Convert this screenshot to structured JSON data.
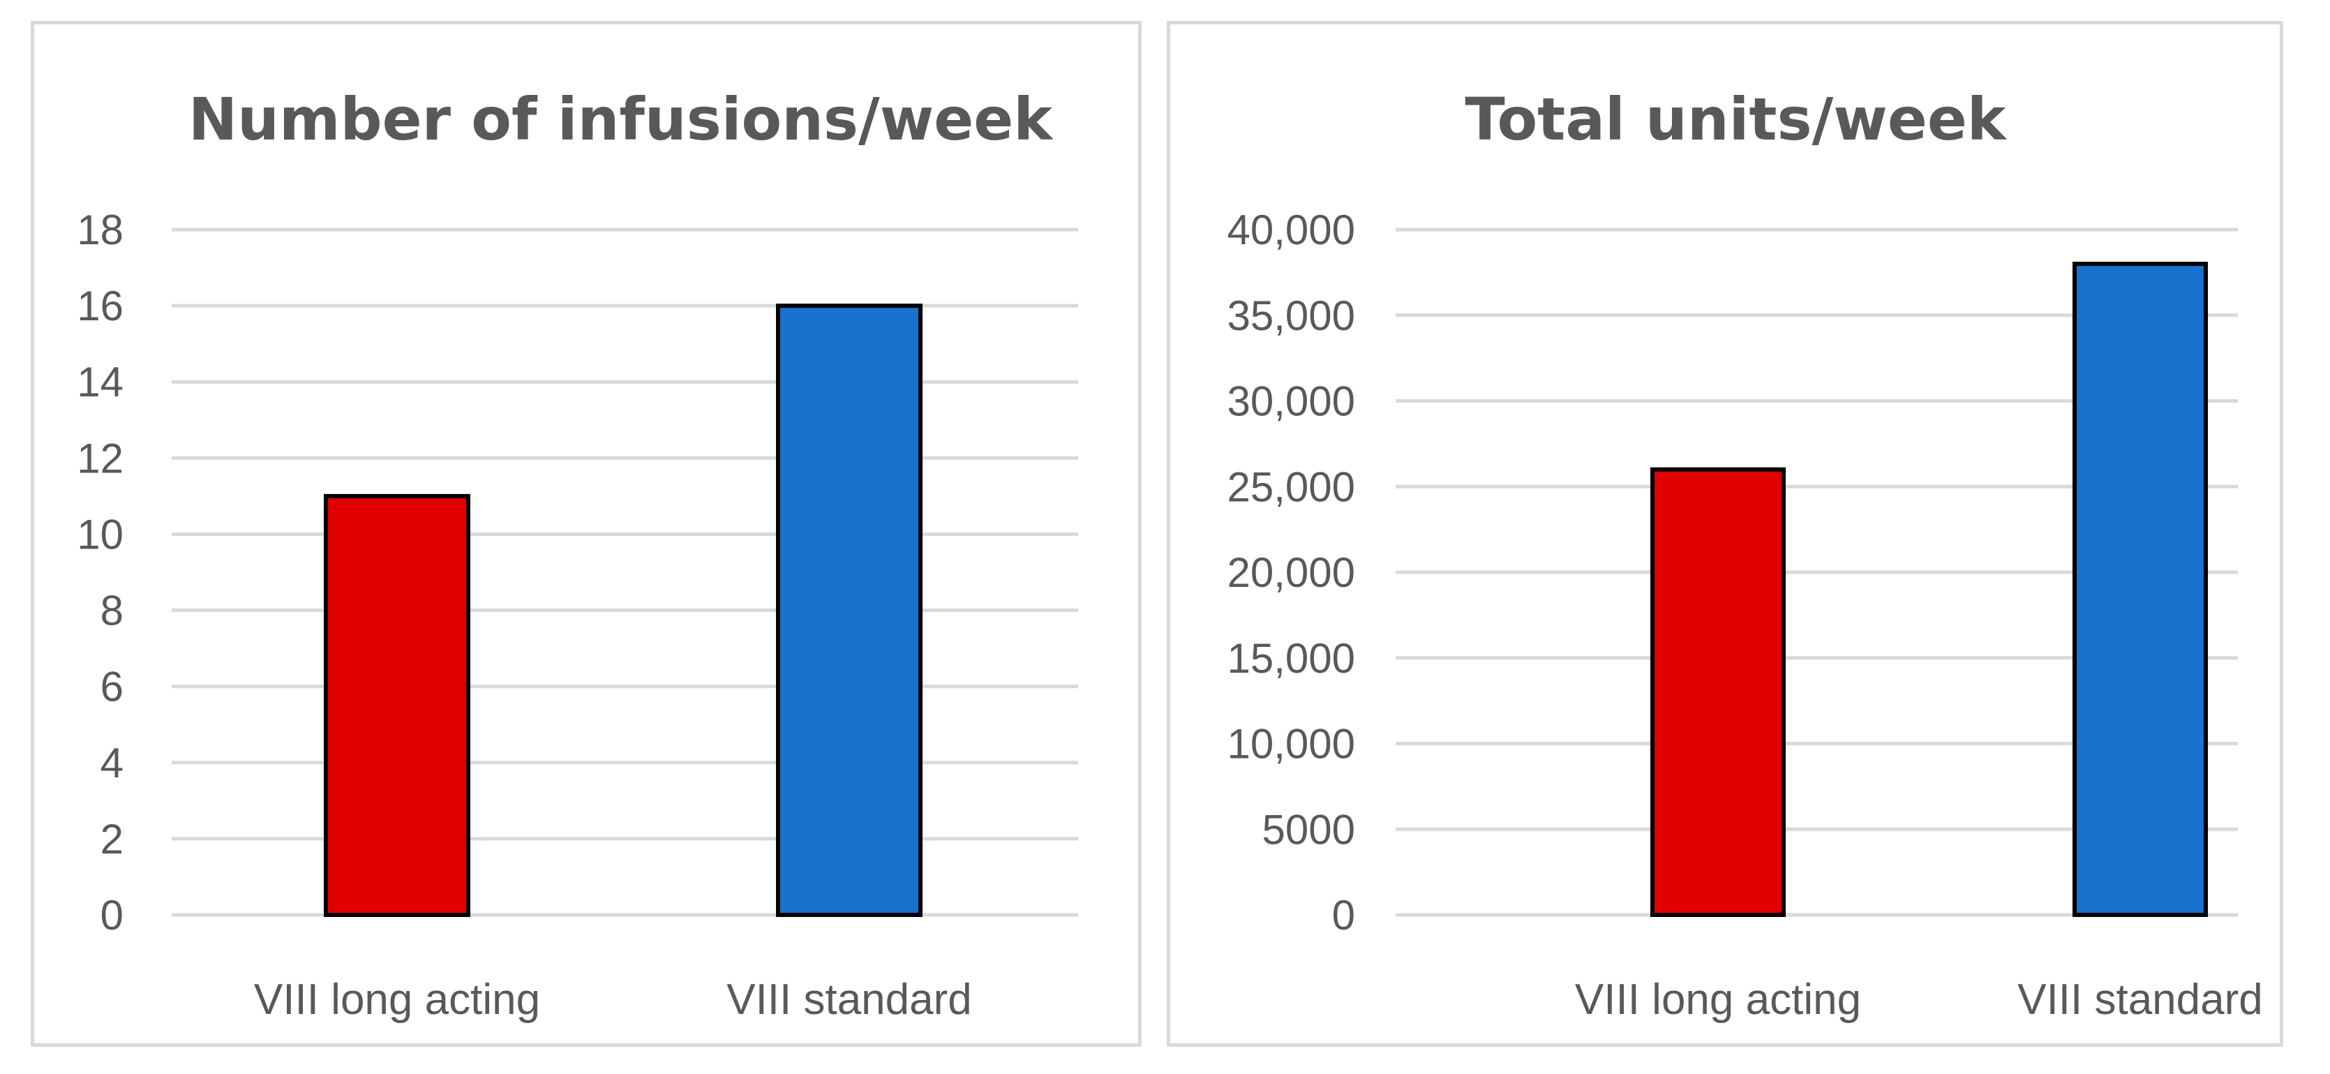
{
  "chart_data": [
    {
      "type": "bar",
      "title": "Number of infusions/week",
      "categories": [
        "VIII long acting",
        "VIII standard"
      ],
      "values": [
        11,
        16
      ],
      "bar_colors": [
        "#e00000",
        "#1873ce"
      ],
      "ylim": [
        0,
        18
      ],
      "yticks": [
        0,
        2,
        4,
        6,
        8,
        10,
        12,
        14,
        16,
        18
      ],
      "ytick_labels": [
        "0",
        "2",
        "4",
        "6",
        "8",
        "10",
        "12",
        "14",
        "16",
        "18"
      ],
      "grid": true,
      "legend": "none"
    },
    {
      "type": "bar",
      "title": "Total units/week",
      "categories": [
        "VIII long acting",
        "VIII standard"
      ],
      "values": [
        26000,
        38000
      ],
      "bar_colors": [
        "#e00000",
        "#1873ce"
      ],
      "ylim": [
        0,
        40000
      ],
      "yticks": [
        0,
        5000,
        10000,
        15000,
        20000,
        25000,
        30000,
        35000,
        40000
      ],
      "ytick_labels": [
        "0",
        "5000",
        "10,000",
        "15,000",
        "20,000",
        "25,000",
        "30,000",
        "35,000",
        "40,000"
      ],
      "grid": true,
      "legend": "none"
    }
  ]
}
